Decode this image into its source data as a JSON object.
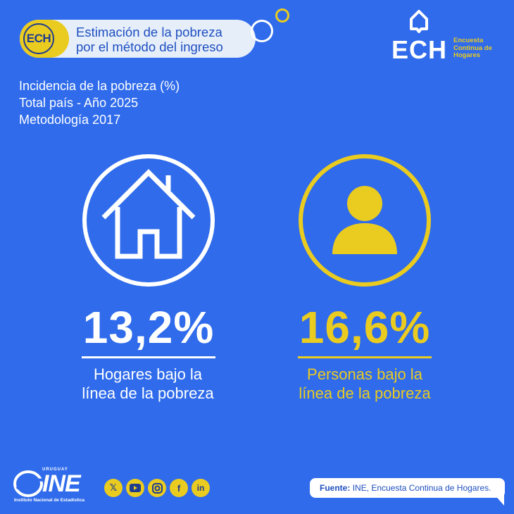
{
  "header": {
    "badge": "ECH",
    "title_line1": "Estimación de la pobreza",
    "title_line2": "por el método del ingreso"
  },
  "brand": {
    "logo": "ECH",
    "sub_line1": "Encuesta",
    "sub_line2": "Continua de",
    "sub_line3": "Hogares"
  },
  "subtitle": {
    "line1": "Incidencia de la pobreza (%)",
    "line2": "Total país - Año 2025",
    "line3": "Metodología 2017"
  },
  "stats": [
    {
      "icon": "house-icon",
      "value": "13,2%",
      "caption_line1": "Hogares bajo la",
      "caption_line2": "línea de la pobreza",
      "color": "#FFFFFF"
    },
    {
      "icon": "person-icon",
      "value": "16,6%",
      "caption_line1": "Personas bajo la",
      "caption_line2": "línea de la pobreza",
      "color": "#EACB20"
    }
  ],
  "footer": {
    "ine_country": "URUGUAY",
    "ine_word": "INE",
    "ine_name": "Instituto Nacional de Estadística",
    "social": [
      "x-icon",
      "youtube-icon",
      "instagram-icon",
      "facebook-icon",
      "linkedin-icon"
    ],
    "source_label": "Fuente:",
    "source_text": "INE, Encuesta Continua de Hogares."
  },
  "colors": {
    "background": "#2F6BEB",
    "accent": "#EACB20",
    "dark": "#1F3C8F"
  }
}
